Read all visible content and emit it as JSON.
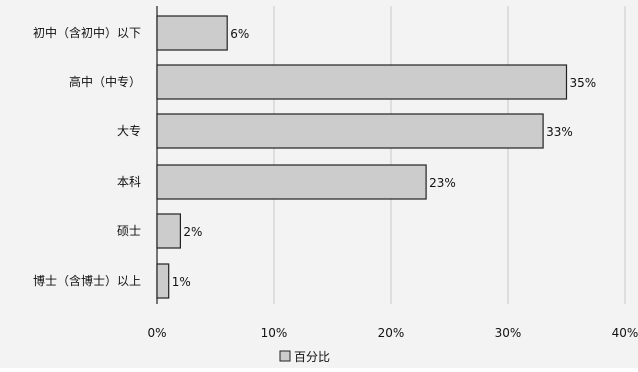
{
  "chart_data": {
    "type": "bar",
    "orientation": "horizontal",
    "categories": [
      "初中（含初中）以下",
      "高中（中专）",
      "大专",
      "本科",
      "硕士",
      "博士（含博士）以上"
    ],
    "series": [
      {
        "name": "百分比",
        "values": [
          6,
          35,
          33,
          23,
          2,
          1
        ],
        "value_labels": [
          "6%",
          "35%",
          "33%",
          "23%",
          "2%",
          "1%"
        ]
      }
    ],
    "x_ticks": [
      0,
      10,
      20,
      30,
      40
    ],
    "x_tick_labels": [
      "0%",
      "10%",
      "20%",
      "30%",
      "40%"
    ],
    "xlim": [
      0,
      40
    ],
    "grid": "vertical",
    "legend_position": "bottom-center",
    "bar_color": "#cccccc",
    "bar_edge_color": "#222222",
    "gridline_color": "#c8c8c8"
  }
}
